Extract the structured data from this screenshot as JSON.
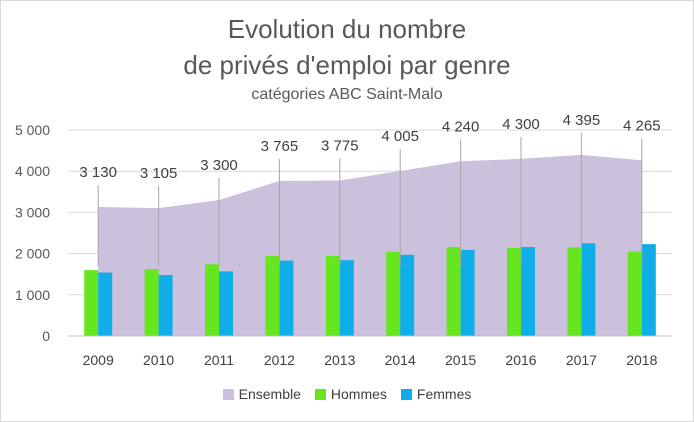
{
  "chart_data": {
    "type": "bar",
    "title": "Evolution du nombre",
    "title_line2": "de privés d'emploi par genre",
    "subtitle": "catégories ABC Saint-Malo",
    "categories": [
      "2009",
      "2010",
      "2011",
      "2012",
      "2013",
      "2014",
      "2015",
      "2016",
      "2017",
      "2018"
    ],
    "ylim": [
      0,
      5000
    ],
    "yticks": [
      0,
      1000,
      2000,
      3000,
      4000,
      5000
    ],
    "ytick_labels": [
      "0",
      "1 000",
      "2 000",
      "3 000",
      "4 000",
      "5 000"
    ],
    "grid": true,
    "legend_position": "bottom",
    "series": [
      {
        "name": "Ensemble",
        "type": "area",
        "color": "#ccc1dc",
        "values": [
          3130,
          3105,
          3300,
          3765,
          3775,
          4005,
          4240,
          4300,
          4395,
          4265
        ],
        "data_labels": [
          "3 130",
          "3 105",
          "3 300",
          "3 765",
          "3 775",
          "4 005",
          "4 240",
          "4 300",
          "4 395",
          "4 265"
        ]
      },
      {
        "name": "Hommes",
        "type": "bar",
        "color": "#66e61e",
        "values": [
          1600,
          1620,
          1740,
          1940,
          1940,
          2040,
          2160,
          2140,
          2150,
          2050
        ]
      },
      {
        "name": "Femmes",
        "type": "bar",
        "color": "#10aee8",
        "values": [
          1540,
          1480,
          1570,
          1830,
          1840,
          1970,
          2090,
          2160,
          2250,
          2230
        ]
      }
    ]
  }
}
